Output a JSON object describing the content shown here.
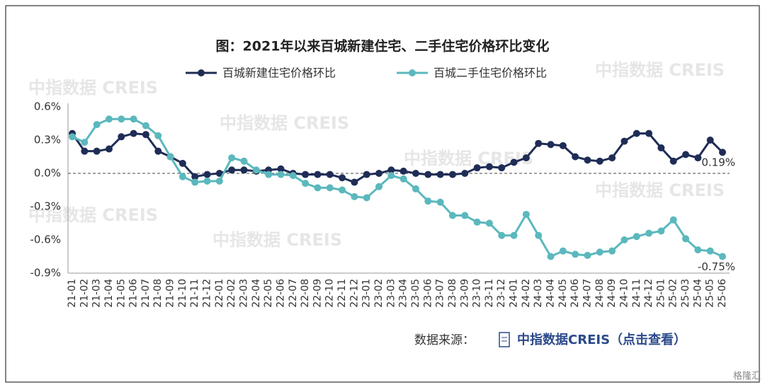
{
  "chart_data": {
    "type": "line",
    "title": "图：2021年以来百城新建住宅、二手住宅价格环比变化",
    "watermark": "中指数据 CREIS",
    "categories": [
      "21-01",
      "21-02",
      "21-03",
      "21-04",
      "21-05",
      "21-06",
      "21-07",
      "21-08",
      "21-09",
      "21-10",
      "21-11",
      "21-12",
      "22-01",
      "22-02",
      "22-03",
      "22-04",
      "22-05",
      "22-06",
      "22-07",
      "22-08",
      "22-09",
      "22-10",
      "22-11",
      "22-12",
      "23-01",
      "23-02",
      "23-03",
      "23-04",
      "23-05",
      "23-06",
      "23-07",
      "23-08",
      "23-09",
      "23-10",
      "23-11",
      "23-12",
      "24-01",
      "24-02",
      "24-03",
      "24-04",
      "24-05",
      "24-06",
      "24-07",
      "24-08",
      "24-09",
      "24-10",
      "24-11",
      "24-12",
      "25-01",
      "25-02",
      "25-03",
      "25-04",
      "25-05",
      "25-06"
    ],
    "series": [
      {
        "name": "百城新建住宅价格环比",
        "color": "#1f2d56",
        "values": [
          0.36,
          0.2,
          0.2,
          0.22,
          0.33,
          0.36,
          0.35,
          0.2,
          0.15,
          0.09,
          -0.03,
          -0.01,
          0.0,
          0.03,
          0.03,
          0.02,
          0.03,
          0.04,
          0.0,
          -0.01,
          -0.01,
          -0.01,
          -0.04,
          -0.08,
          -0.01,
          0.0,
          0.03,
          0.02,
          0.0,
          -0.01,
          -0.01,
          -0.01,
          0.0,
          0.05,
          0.06,
          0.05,
          0.1,
          0.14,
          0.27,
          0.26,
          0.25,
          0.15,
          0.12,
          0.11,
          0.14,
          0.29,
          0.36,
          0.36,
          0.23,
          0.11,
          0.17,
          0.14,
          0.3,
          0.19
        ],
        "value_labels": [
          null,
          null,
          null,
          null,
          null,
          null,
          null,
          null,
          null,
          null,
          null,
          null,
          null,
          null,
          null,
          null,
          null,
          null,
          null,
          null,
          null,
          null,
          null,
          null,
          null,
          null,
          null,
          null,
          null,
          null,
          null,
          null,
          null,
          null,
          null,
          null,
          null,
          null,
          null,
          null,
          null,
          null,
          null,
          null,
          null,
          null,
          null,
          null,
          null,
          null,
          null,
          null,
          null,
          "0.19%"
        ]
      },
      {
        "name": "百城二手住宅价格环比",
        "color": "#5bb8bd",
        "values": [
          0.33,
          0.28,
          0.44,
          0.49,
          0.49,
          0.49,
          0.43,
          0.34,
          0.15,
          -0.03,
          -0.08,
          -0.07,
          -0.07,
          0.14,
          0.11,
          0.03,
          -0.01,
          -0.01,
          -0.02,
          -0.09,
          -0.13,
          -0.13,
          -0.15,
          -0.21,
          -0.22,
          -0.12,
          -0.02,
          -0.05,
          -0.14,
          -0.25,
          -0.26,
          -0.38,
          -0.38,
          -0.44,
          -0.45,
          -0.56,
          -0.56,
          -0.37,
          -0.56,
          -0.75,
          -0.7,
          -0.73,
          -0.74,
          -0.71,
          -0.7,
          -0.6,
          -0.57,
          -0.54,
          -0.52,
          -0.42,
          -0.59,
          -0.69,
          -0.7,
          -0.75
        ],
        "value_labels": [
          null,
          null,
          null,
          null,
          null,
          null,
          null,
          null,
          null,
          null,
          null,
          null,
          null,
          null,
          null,
          null,
          null,
          null,
          null,
          null,
          null,
          null,
          null,
          null,
          null,
          null,
          null,
          null,
          null,
          null,
          null,
          null,
          null,
          null,
          null,
          null,
          null,
          null,
          null,
          null,
          null,
          null,
          null,
          null,
          null,
          null,
          null,
          null,
          null,
          null,
          null,
          null,
          null,
          "-0.75%"
        ]
      }
    ],
    "ylim": [
      -0.9,
      0.6
    ],
    "yticks": [
      {
        "value": -0.9,
        "label": "-0.9%"
      },
      {
        "value": -0.6,
        "label": "-0.6%"
      },
      {
        "value": -0.3,
        "label": "-0.3%"
      },
      {
        "value": 0,
        "label": "0.0%"
      },
      {
        "value": 0.3,
        "label": "0.3%"
      },
      {
        "value": 0.6,
        "label": "0.6%"
      }
    ],
    "legend": "top",
    "source_label": "数据来源：",
    "source_link": "中指数据CREIS（点击查看）",
    "corner_logo": "格隆汇"
  }
}
